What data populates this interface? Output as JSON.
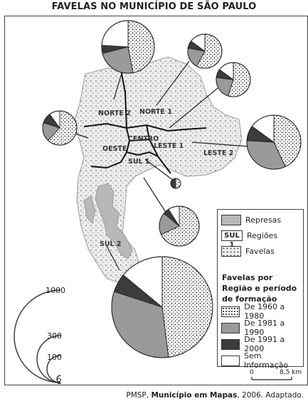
{
  "map": {
    "title": "FAVELAS NO MUNICÍPIO DE SÃO PAULO",
    "source_prefix": "PMSP, ",
    "source_book": "Município em Mapas",
    "source_suffix": ", 2006. Adaptado."
  },
  "regions": {
    "norte2": "NORTE 2",
    "norte1": "NORTE 1",
    "centro": "CENTRO",
    "oeste": "OESTE",
    "leste1": "LESTE 1",
    "leste2": "LESTE 2",
    "sul1": "SUL 1",
    "sul2": "SUL 2"
  },
  "legend": {
    "represas": "Represas",
    "regioes_swatch": "SUL 1",
    "regioes": "Regiões",
    "favelas": "Favelas",
    "subtitle": "Favelas por Região e período de formação",
    "p1": "De 1960 a 1980",
    "p2": "De 1981 a 1990",
    "p3": "De 1991 a 2000",
    "p4": "Sem Informação"
  },
  "size_scale": {
    "v1000": "1000",
    "v300": "300",
    "v100": "100",
    "v2": "2"
  },
  "scale_bar": {
    "zero": "0",
    "km": "8,5 km"
  },
  "colors": {
    "p1960": "#ffffff",
    "p1981": "#9a9a9a",
    "p1991": "#3c3c3c",
    "none": "#ffffff",
    "territory": "#e6e6e6",
    "represas": "#b8b8b8"
  }
}
